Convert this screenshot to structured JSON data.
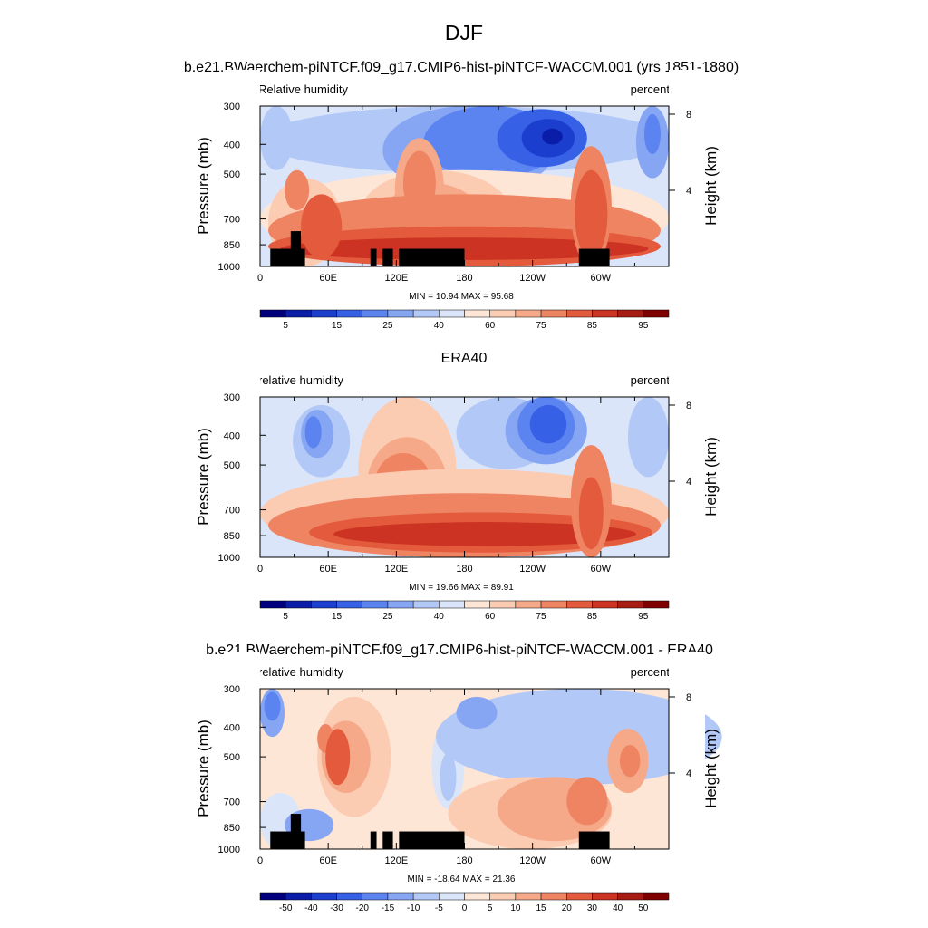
{
  "figure": {
    "title": "DJF"
  },
  "colors": {
    "humidity_levels": [
      "#00007f",
      "#0a1da8",
      "#1c3ecf",
      "#3660e6",
      "#5b84f0",
      "#86a6f4",
      "#b2c8f7",
      "#dbe5fa",
      "#fde6d6",
      "#fbcbb2",
      "#f6a989",
      "#ef8463",
      "#e35a3c",
      "#cc3322",
      "#a81b13",
      "#800000"
    ],
    "difference_levels": [
      "#00007f",
      "#0a1da8",
      "#1c3ecf",
      "#3660e6",
      "#5b84f0",
      "#86a6f4",
      "#b2c8f7",
      "#dbe5fa",
      "#fde6d6",
      "#fbcbb2",
      "#f6a989",
      "#ef8463",
      "#e35a3c",
      "#cc3322",
      "#a81b13",
      "#800000"
    ],
    "topography": "#000000"
  },
  "chart_data": [
    {
      "type": "heatmap",
      "title": "b.e21.BWaerchem-piNTCF.f09_g17.CMIP6-hist-piNTCF-WACCM.001 (yrs 1851-1880)",
      "left_label": "Relative humidity",
      "right_label": "percent",
      "ylabel": "Pressure (mb)",
      "y2label": "Height (km)",
      "x_ticks": [
        "0",
        "60E",
        "120E",
        "180",
        "120W",
        "60W"
      ],
      "x_tick_values": [
        0,
        60,
        120,
        180,
        240,
        300
      ],
      "xlim": [
        0,
        360
      ],
      "y_ticks": [
        "300",
        "400",
        "500",
        "700",
        "850",
        "1000"
      ],
      "y_tick_values": [
        300,
        400,
        500,
        700,
        850,
        1000
      ],
      "ylim": [
        1000,
        300
      ],
      "y_scale": "log",
      "y2_ticks": [
        "8",
        "4"
      ],
      "y2_tick_values": [
        8,
        4
      ],
      "stats": "MIN =  10.94  MAX =  95.68",
      "min": 10.94,
      "max": 95.68,
      "colorbar_labels": [
        "5",
        "15",
        "25",
        "40",
        "60",
        "75",
        "85",
        "95"
      ],
      "topography": true
    },
    {
      "type": "heatmap",
      "title": "ERA40",
      "left_label": "relative humidity",
      "right_label": "percent",
      "ylabel": "Pressure (mb)",
      "y2label": "Height (km)",
      "x_ticks": [
        "0",
        "60E",
        "120E",
        "180",
        "120W",
        "60W"
      ],
      "x_tick_values": [
        0,
        60,
        120,
        180,
        240,
        300
      ],
      "xlim": [
        0,
        360
      ],
      "y_ticks": [
        "300",
        "400",
        "500",
        "700",
        "850",
        "1000"
      ],
      "y_tick_values": [
        300,
        400,
        500,
        700,
        850,
        1000
      ],
      "ylim": [
        1000,
        300
      ],
      "y_scale": "log",
      "y2_ticks": [
        "8",
        "4"
      ],
      "y2_tick_values": [
        8,
        4
      ],
      "stats": "MIN =  19.66  MAX =  89.91",
      "min": 19.66,
      "max": 89.91,
      "colorbar_labels": [
        "5",
        "15",
        "25",
        "40",
        "60",
        "75",
        "85",
        "95"
      ],
      "topography": false
    },
    {
      "type": "heatmap",
      "title": "b.e21.BWaerchem-piNTCF.f09_g17.CMIP6-hist-piNTCF-WACCM.001 - ERA40",
      "left_label": "relative humidity",
      "right_label": "percent",
      "ylabel": "Pressure (mb)",
      "y2label": "Height (km)",
      "x_ticks": [
        "0",
        "60E",
        "120E",
        "180",
        "120W",
        "60W"
      ],
      "x_tick_values": [
        0,
        60,
        120,
        180,
        240,
        300
      ],
      "xlim": [
        0,
        360
      ],
      "y_ticks": [
        "300",
        "400",
        "500",
        "700",
        "850",
        "1000"
      ],
      "y_tick_values": [
        300,
        400,
        500,
        700,
        850,
        1000
      ],
      "ylim": [
        1000,
        300
      ],
      "y_scale": "log",
      "y2_ticks": [
        "8",
        "4"
      ],
      "y2_tick_values": [
        8,
        4
      ],
      "stats": "MIN = -18.64  MAX =  21.36",
      "min": -18.64,
      "max": 21.36,
      "colorbar_labels": [
        "-50",
        "-40",
        "-30",
        "-20",
        "-15",
        "-10",
        "-5",
        "0",
        "5",
        "10",
        "15",
        "20",
        "30",
        "40",
        "50"
      ],
      "topography": true
    }
  ]
}
